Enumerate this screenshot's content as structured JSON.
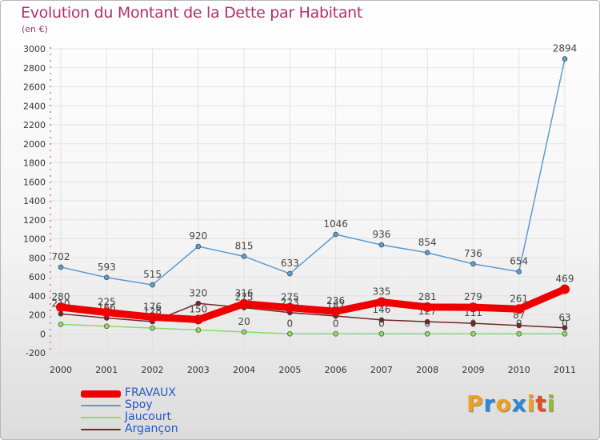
{
  "title": "Evolution du Montant de la Dette par Habitant",
  "subtitle": "(en €)",
  "brand": {
    "letters": [
      "P",
      "r",
      "o",
      "x",
      "i",
      "t",
      "i"
    ],
    "colors": [
      "#f0a020",
      "#2a88d8",
      "#f0a020",
      "#2a88d8",
      "#f0a020",
      "#e05020",
      "#90c030"
    ]
  },
  "chart_data": {
    "type": "line",
    "x": [
      "2000",
      "2001",
      "2002",
      "2003",
      "2004",
      "2005",
      "2006",
      "2007",
      "2008",
      "2009",
      "2010",
      "2011"
    ],
    "ylim": [
      -200,
      3000
    ],
    "yticks": [
      "-200",
      "0",
      "200",
      "400",
      "600",
      "800",
      "1000",
      "1200",
      "1400",
      "1600",
      "1800",
      "2000",
      "2200",
      "2400",
      "2600",
      "2800",
      "3000"
    ],
    "grid": true,
    "legend": "bottom-left",
    "series": [
      {
        "name": "Spoy",
        "color": "#5d9bd0",
        "values": [
          702,
          593,
          515,
          920,
          815,
          633,
          1046,
          936,
          854,
          736,
          654,
          2894
        ],
        "labels": [
          "702",
          "593",
          "515",
          "920",
          "815",
          "633",
          "1046",
          "936",
          "854",
          "736",
          "654",
          "2894"
        ]
      },
      {
        "name": "Jaucourt",
        "color": "#8ed868",
        "values": [
          100,
          80,
          60,
          40,
          20,
          0,
          0,
          0,
          0,
          0,
          0,
          0
        ],
        "labels": [
          "",
          "",
          "",
          "",
          "20",
          "0",
          "0",
          "0",
          "0",
          "0",
          "0",
          "0"
        ]
      },
      {
        "name": "Argançon",
        "color": "#702828",
        "values": [
          210,
          166,
          128,
          320,
          275,
          223,
          187,
          146,
          127,
          111,
          87,
          63
        ],
        "labels": [
          "210",
          "166",
          "128",
          "320",
          "275",
          "223",
          "187",
          "146",
          "127",
          "111",
          "87",
          "63"
        ]
      },
      {
        "name": "FRAVAUX",
        "color": "#ee0000",
        "values": [
          280,
          225,
          176,
          150,
          316,
          275,
          236,
          335,
          281,
          279,
          261,
          469
        ],
        "labels": [
          "280",
          "225",
          "176",
          "150",
          "316",
          "275",
          "236",
          "335",
          "281",
          "279",
          "261",
          "469"
        ]
      }
    ]
  },
  "legend": {
    "items": [
      {
        "label": "FRAVAUX",
        "color": "#ee0000"
      },
      {
        "label": "Spoy",
        "color": "#5d9bd0"
      },
      {
        "label": "Jaucourt",
        "color": "#8ed868"
      },
      {
        "label": "Argançon",
        "color": "#702828"
      }
    ]
  }
}
